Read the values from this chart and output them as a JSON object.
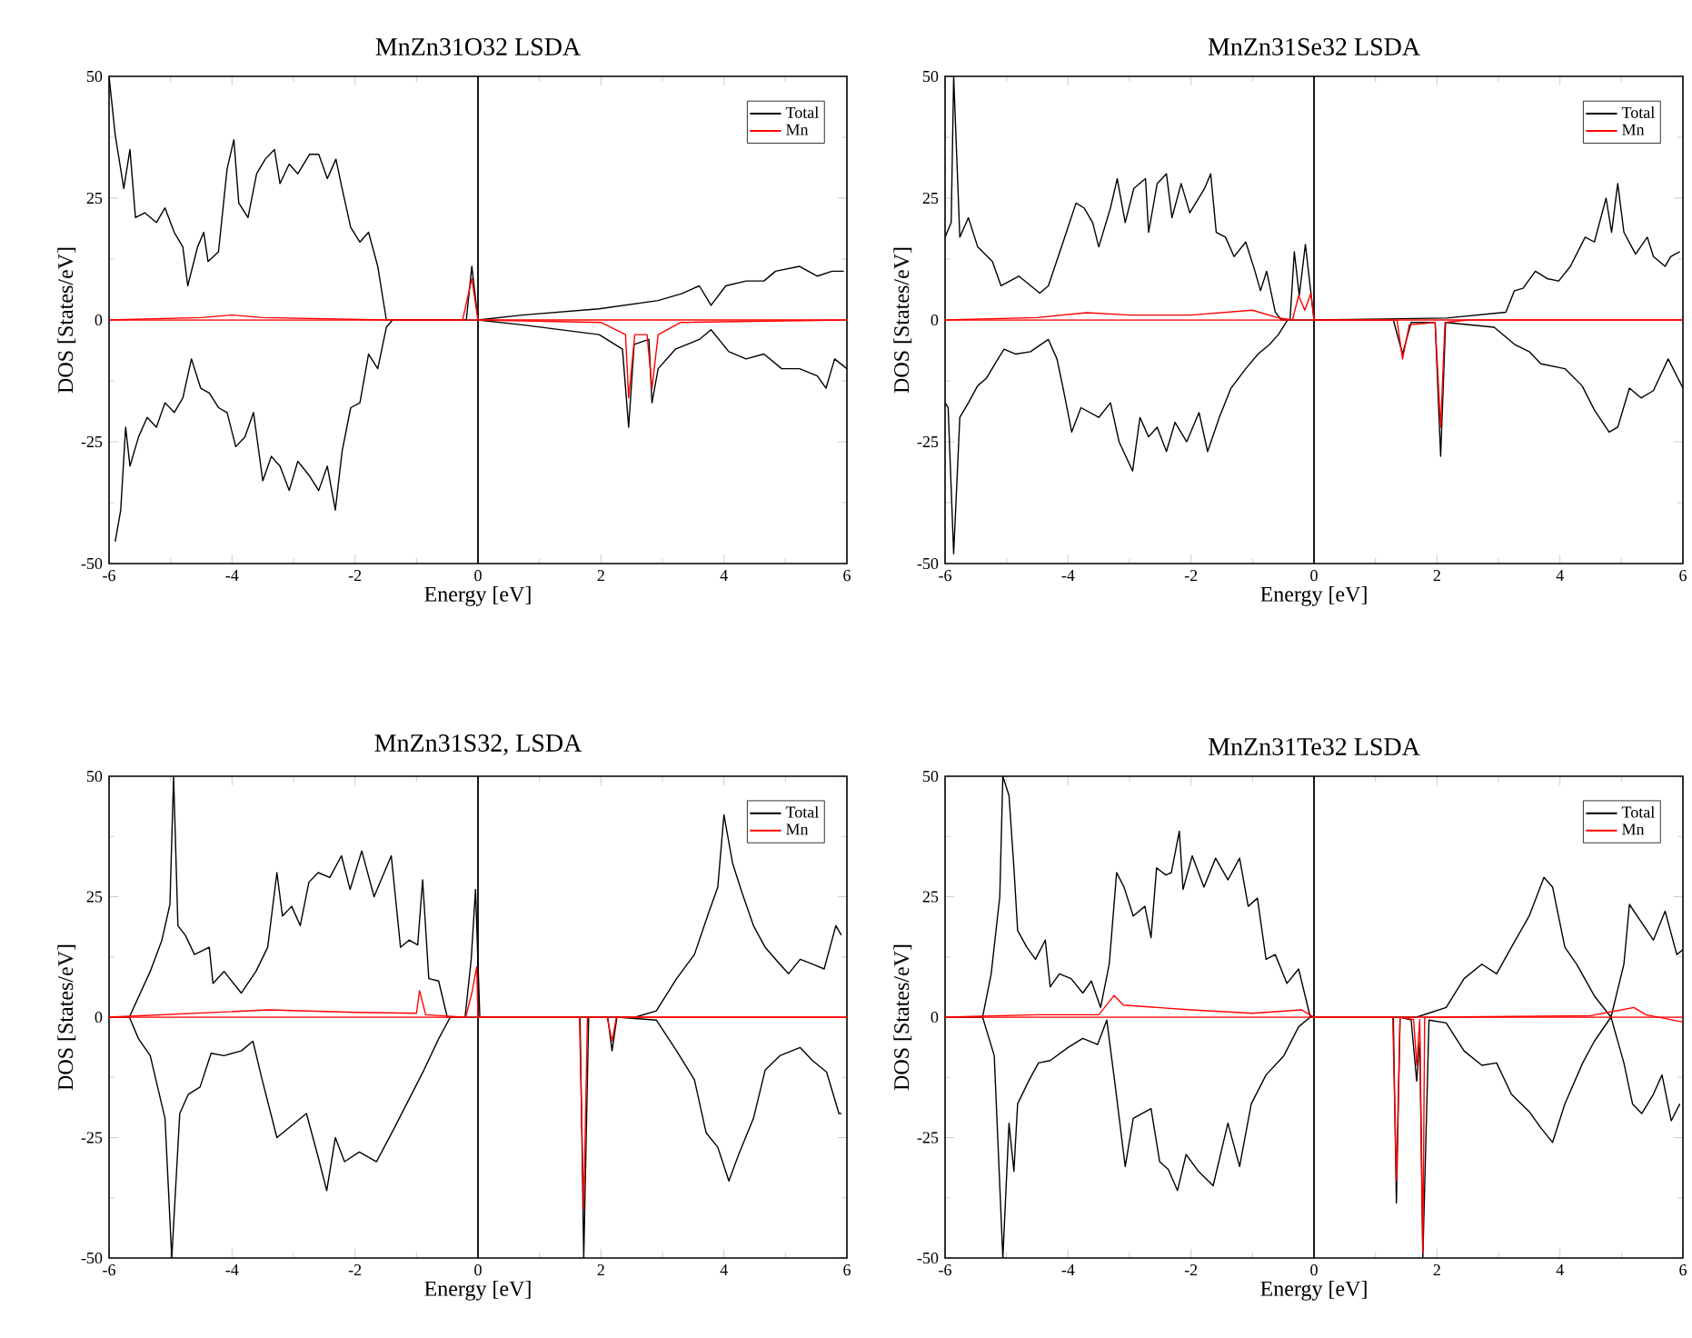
{
  "chart_data": [
    {
      "type": "line",
      "title": "MnZn31O32 LSDA",
      "xlabel": "Energy [eV]",
      "ylabel": "DOS [States/eV]",
      "xlim": [
        -6,
        6
      ],
      "ylim": [
        -50,
        50
      ],
      "xticks": [
        -6,
        -4,
        -2,
        0,
        2,
        4,
        6
      ],
      "yticks": [
        -50,
        -25,
        0,
        25,
        50
      ],
      "legend": "top right",
      "marker": "none",
      "line_style": "solid",
      "ref_lines": [
        {
          "axis": "x",
          "value": 0,
          "color": "#000000"
        }
      ],
      "series": [
        {
          "name": "Total",
          "color": "#000000",
          "x": [
            -6,
            -5.9,
            -5.76,
            -5.66,
            -5.57,
            -5.42,
            -5.23,
            -5.09,
            -4.94,
            -4.8,
            -4.72,
            -4.56,
            -4.46,
            -4.39,
            -4.22,
            -4.08,
            -3.97,
            -3.89,
            -3.74,
            -3.6,
            -3.46,
            -3.31,
            -3.22,
            -3.07,
            -2.93,
            -2.74,
            -2.59,
            -2.45,
            -2.31,
            -2.21,
            -2.07,
            -1.92,
            -1.78,
            -1.63,
            -1.49,
            -0.19,
            -0.1,
            0,
            0.72,
            1.97,
            2.93,
            3.31,
            3.6,
            3.79,
            4.03,
            4.36,
            4.65,
            4.84,
            5.23,
            5.52,
            5.76,
            5.95
          ],
          "values": [
            50,
            38,
            27,
            35,
            21,
            22,
            20,
            23,
            18,
            15,
            7,
            15,
            18,
            12,
            14,
            31,
            37,
            24,
            21,
            30,
            33,
            35,
            28,
            32,
            30,
            34,
            34,
            29,
            33,
            27,
            19,
            16,
            18,
            11,
            0,
            0,
            11,
            0,
            1,
            2.3,
            4,
            5.4,
            7,
            3,
            7,
            8,
            8,
            10,
            11,
            9,
            10,
            10
          ]
        },
        {
          "color": "#000000",
          "x": [
            -5.9,
            -5.81,
            -5.73,
            -5.66,
            -5.52,
            -5.38,
            -5.23,
            -5.09,
            -4.94,
            -4.8,
            -4.66,
            -4.51,
            -4.37,
            -4.22,
            -4.08,
            -3.94,
            -3.79,
            -3.65,
            -3.5,
            -3.36,
            -3.22,
            -3.07,
            -2.93,
            -2.74,
            -2.59,
            -2.45,
            -2.32,
            -2.21,
            -2.07,
            -1.92,
            -1.78,
            -1.63,
            -1.49,
            -1.39,
            0,
            0.72,
            1.97,
            2.35,
            2.45,
            2.54,
            2.78,
            2.83,
            2.93,
            3.21,
            3.6,
            3.79,
            4.08,
            4.36,
            4.65,
            4.94,
            5.23,
            5.52,
            5.66,
            5.8,
            6
          ],
          "values": [
            -45.5,
            -39,
            -22,
            -30,
            -24,
            -20,
            -22,
            -17,
            -19,
            -16,
            -8,
            -14,
            -15,
            -18,
            -19,
            -26,
            -24,
            -19,
            -33,
            -28,
            -30,
            -35,
            -29,
            -32,
            -35,
            -30,
            -39,
            -27,
            -18,
            -17,
            -7,
            -10,
            -1.5,
            0,
            0,
            -1,
            -3,
            -6,
            -22,
            -5,
            -4,
            -17,
            -10,
            -6,
            -4,
            -2,
            -6.5,
            -8,
            -7,
            -10,
            -10,
            -11.5,
            -14,
            -8,
            -10
          ]
        },
        {
          "name": "Mn",
          "color": "#ff0000",
          "x": [
            -6,
            -4.5,
            -4,
            -3.5,
            -1.5,
            -0.25,
            -0.1,
            0,
            6
          ],
          "values": [
            0,
            0.5,
            1,
            0.5,
            0,
            0,
            8.5,
            0,
            0
          ]
        },
        {
          "color": "#ff0000",
          "x": [
            -6,
            0,
            2,
            2.4,
            2.45,
            2.55,
            2.75,
            2.83,
            2.93,
            3.3,
            6
          ],
          "values": [
            0,
            0,
            -0.5,
            -3,
            -16,
            -3,
            -3,
            -14,
            -3,
            -0.5,
            0
          ]
        }
      ]
    },
    {
      "type": "line",
      "title": "MnZn31Se32 LSDA",
      "xlabel": "Energy [eV]",
      "ylabel": "DOS [States/eV]",
      "xlim": [
        -6,
        6
      ],
      "ylim": [
        -50,
        50
      ],
      "xticks": [
        -6,
        -4,
        -2,
        0,
        2,
        4,
        6
      ],
      "yticks": [
        -50,
        -25,
        0,
        25,
        50
      ],
      "legend": "top right",
      "marker": "none",
      "line_style": "solid",
      "ref_lines": [
        {
          "axis": "x",
          "value": 0,
          "color": "#000000"
        }
      ],
      "series": [
        {
          "name": "Total",
          "color": "#000000",
          "x": [
            -6,
            -5.9,
            -5.86,
            -5.76,
            -5.62,
            -5.47,
            -5.23,
            -5.09,
            -4.8,
            -4.46,
            -4.32,
            -4.08,
            -3.87,
            -3.74,
            -3.6,
            -3.5,
            -3.31,
            -3.2,
            -3.07,
            -2.93,
            -2.74,
            -2.69,
            -2.55,
            -2.4,
            -2.31,
            -2.16,
            -2.02,
            -1.78,
            -1.68,
            -1.59,
            -1.44,
            -1.3,
            -1.11,
            -0.96,
            -0.87,
            -0.77,
            -0.63,
            -0.53,
            -0.39,
            -0.32,
            -0.24,
            -0.14,
            0,
            2.16,
            3.12,
            3.26,
            3.4,
            3.6,
            3.79,
            3.98,
            4.17,
            4.41,
            4.56,
            4.75,
            4.84,
            4.94,
            5.04,
            5.23,
            5.42,
            5.52,
            5.71,
            5.8,
            5.95
          ],
          "values": [
            17,
            20,
            50,
            17,
            21,
            15,
            12,
            7,
            9,
            5.5,
            7,
            16,
            24,
            23,
            20,
            15,
            23,
            29,
            20,
            27,
            29,
            18,
            28,
            30,
            21,
            28,
            22,
            27,
            30,
            18,
            17,
            13,
            16,
            10,
            6,
            10,
            1.6,
            0,
            0,
            14,
            5,
            15.5,
            0,
            0.4,
            1.6,
            6,
            6.5,
            10,
            8.5,
            8,
            11,
            17,
            16,
            25,
            18,
            28,
            18,
            13.5,
            17,
            13,
            11,
            13,
            14
          ]
        },
        {
          "color": "#000000",
          "x": [
            -6,
            -5.95,
            -5.86,
            -5.76,
            -5.62,
            -5.47,
            -5.33,
            -5.14,
            -5.04,
            -4.85,
            -4.61,
            -4.32,
            -4.18,
            -4.08,
            -3.94,
            -3.79,
            -3.5,
            -3.31,
            -3.17,
            -2.95,
            -2.83,
            -2.69,
            -2.55,
            -2.4,
            -2.26,
            -2.07,
            -1.87,
            -1.73,
            -1.54,
            -1.35,
            -1.11,
            -0.91,
            -0.72,
            -0.58,
            -0.43,
            0,
            1.29,
            1.44,
            1.58,
            1.97,
            2.06,
            2.14,
            2.93,
            3.26,
            3.5,
            3.69,
            4.08,
            4.36,
            4.56,
            4.8,
            4.94,
            5.13,
            5.32,
            5.52,
            5.76,
            6
          ],
          "values": [
            -17,
            -18,
            -48,
            -20,
            -17,
            -13.5,
            -12,
            -8,
            -6,
            -7,
            -6.5,
            -4,
            -8,
            -14,
            -23,
            -18,
            -20,
            -17,
            -25,
            -31,
            -20,
            -24,
            -22,
            -27,
            -21,
            -25,
            -19,
            -27,
            -20,
            -14,
            -10,
            -7,
            -5,
            -3,
            0,
            0,
            0,
            -7,
            -0.5,
            -0.5,
            -28,
            -0.5,
            -1.5,
            -5,
            -6.5,
            -9,
            -10,
            -13.5,
            -18.5,
            -23,
            -22,
            -14,
            -16,
            -14.5,
            -8,
            -14
          ]
        },
        {
          "name": "Mn",
          "color": "#ff0000",
          "x": [
            -6,
            -4.5,
            -3.7,
            -3,
            -2,
            -1,
            -0.6,
            -0.35,
            -0.25,
            -0.15,
            -0.05,
            0,
            6
          ],
          "values": [
            0,
            0.5,
            1.5,
            1,
            1,
            2,
            0.5,
            0,
            5,
            2,
            5.5,
            0,
            0
          ]
        },
        {
          "color": "#ff0000",
          "x": [
            -6,
            0,
            1.35,
            1.44,
            1.55,
            1.97,
            2.06,
            2.13,
            2.5,
            6
          ],
          "values": [
            0,
            0,
            0,
            -8,
            -1,
            -0.5,
            -22,
            -0.5,
            0,
            0
          ]
        }
      ]
    },
    {
      "type": "line",
      "title": "MnZn31S32, LSDA",
      "xlabel": "Energy [eV]",
      "ylabel": "DOS [States/eV]",
      "xlim": [
        -6,
        6
      ],
      "ylim": [
        -50,
        50
      ],
      "xticks": [
        -6,
        -4,
        -2,
        0,
        2,
        4,
        6
      ],
      "yticks": [
        -50,
        -25,
        0,
        25,
        50
      ],
      "legend": "top right",
      "marker": "none",
      "line_style": "solid",
      "ref_lines": [
        {
          "axis": "x",
          "value": 0,
          "color": "#000000"
        }
      ],
      "series": [
        {
          "name": "Total",
          "color": "#000000",
          "x": [
            -6,
            -5.67,
            -5.33,
            -5.14,
            -5.01,
            -4.95,
            -4.88,
            -4.76,
            -4.61,
            -4.37,
            -4.31,
            -4.13,
            -3.85,
            -3.61,
            -3.42,
            -3.27,
            -3.18,
            -3.03,
            -2.89,
            -2.75,
            -2.6,
            -2.41,
            -2.22,
            -2.08,
            -1.89,
            -1.69,
            -1.41,
            -1.26,
            -1.12,
            -0.98,
            -0.9,
            -0.8,
            -0.64,
            -0.5,
            -0.21,
            -0.11,
            -0.04,
            0.03,
            2.56,
            2.9,
            3.23,
            3.52,
            3.76,
            3.9,
            4,
            4.14,
            4.29,
            4.48,
            4.67,
            4.91,
            5.05,
            5.24,
            5.44,
            5.63,
            5.82,
            5.91
          ],
          "values": [
            0,
            0,
            9.5,
            16,
            23.4,
            50,
            19,
            17,
            13,
            14.5,
            7,
            9.5,
            5,
            9.5,
            14.5,
            30,
            21,
            23,
            19,
            28,
            30,
            29,
            33.5,
            26.5,
            34.5,
            25,
            33.5,
            14.5,
            16,
            15,
            28.5,
            8,
            7.5,
            0,
            0,
            12,
            26.5,
            0,
            0,
            1.3,
            8,
            13,
            22,
            27,
            42,
            32,
            26,
            19,
            14.5,
            11,
            9,
            12,
            11,
            10,
            19,
            17
          ]
        },
        {
          "color": "#000000",
          "x": [
            -6,
            -5.67,
            -5.52,
            -5.33,
            -5.09,
            -4.98,
            -4.85,
            -4.71,
            -4.52,
            -4.34,
            -4.13,
            -3.85,
            -3.66,
            -3.51,
            -3.27,
            -3.08,
            -2.79,
            -2.6,
            -2.46,
            -2.32,
            -2.17,
            -1.93,
            -1.65,
            -1.36,
            -1.12,
            -0.88,
            -0.64,
            -0.45,
            0,
            1.66,
            1.72,
            1.8,
            2.11,
            2.18,
            2.26,
            2.9,
            3.23,
            3.52,
            3.71,
            3.9,
            4.08,
            4.24,
            4.48,
            4.67,
            4.91,
            5.24,
            5.44,
            5.67,
            5.87,
            5.91
          ],
          "values": [
            0,
            0,
            -4.5,
            -8,
            -21,
            -50,
            -20,
            -16,
            -14.5,
            -7.5,
            -8,
            -7,
            -5,
            -13,
            -25,
            -23,
            -20,
            -29,
            -36,
            -25,
            -30,
            -28,
            -30,
            -23,
            -17,
            -11,
            -4.5,
            0,
            0,
            0,
            -50,
            0,
            0,
            -7,
            0,
            -0.6,
            -7,
            -13,
            -24,
            -27,
            -34,
            -28.5,
            -21,
            -11,
            -8,
            -6.3,
            -9,
            -11.4,
            -20,
            -20
          ]
        },
        {
          "name": "Mn",
          "color": "#ff0000",
          "x": [
            -6,
            -3.4,
            -2,
            -1,
            -0.95,
            -0.85,
            -0.2,
            -0.1,
            -0.02,
            0,
            6
          ],
          "values": [
            0,
            1.5,
            1,
            0.8,
            5.5,
            0.5,
            0,
            5,
            10.5,
            0,
            0
          ]
        },
        {
          "color": "#ff0000",
          "x": [
            -6,
            0,
            1.65,
            1.72,
            1.78,
            2.1,
            2.18,
            2.25,
            6
          ],
          "values": [
            0,
            0,
            0,
            -40,
            0,
            0,
            -5,
            0,
            0
          ]
        }
      ]
    },
    {
      "type": "line",
      "title": "MnZn31Te32 LSDA",
      "xlabel": "Energy [eV]",
      "ylabel": "DOS [States/eV]",
      "xlim": [
        -6,
        6
      ],
      "ylim": [
        -50,
        50
      ],
      "xticks": [
        -6,
        -4,
        -2,
        0,
        2,
        4,
        6
      ],
      "yticks": [
        -50,
        -25,
        0,
        25,
        50
      ],
      "legend": "top right",
      "marker": "none",
      "line_style": "solid",
      "ref_lines": [
        {
          "axis": "x",
          "value": 0,
          "color": "#000000"
        }
      ],
      "series": [
        {
          "name": "Total",
          "color": "#000000",
          "x": [
            -6,
            -5.39,
            -5.25,
            -5.11,
            -5.06,
            -4.96,
            -4.88,
            -4.82,
            -4.67,
            -4.53,
            -4.37,
            -4.29,
            -4.14,
            -3.95,
            -3.76,
            -3.62,
            -3.47,
            -3.33,
            -3.21,
            -3.09,
            -2.94,
            -2.75,
            -2.65,
            -2.56,
            -2.41,
            -2.32,
            -2.19,
            -2.13,
            -1.98,
            -1.79,
            -1.6,
            -1.4,
            -1.21,
            -1.07,
            -0.92,
            -0.78,
            -0.63,
            -0.44,
            -0.25,
            -0.06,
            1.67,
            2.15,
            2.44,
            2.73,
            2.97,
            3.21,
            3.5,
            3.74,
            3.88,
            4.08,
            4.27,
            4.56,
            4.83,
            5.04,
            5.13,
            5.33,
            5.52,
            5.71,
            5.9,
            6
          ],
          "values": [
            0,
            0,
            9,
            25,
            50,
            46,
            31,
            18,
            14.5,
            12,
            16,
            6.3,
            9,
            8,
            5,
            7.5,
            2,
            11,
            30,
            27,
            21,
            23,
            16.5,
            31,
            29.5,
            30,
            38.6,
            26.5,
            33.5,
            27,
            33,
            28.5,
            33,
            23,
            24.7,
            12,
            13,
            7,
            10,
            0,
            0,
            2,
            8,
            11,
            9,
            14.5,
            21,
            29,
            27,
            14.5,
            11,
            4.4,
            0,
            11,
            23.4,
            19.6,
            16,
            22,
            13,
            14
          ]
        },
        {
          "color": "#000000",
          "x": [
            -6,
            -5.39,
            -5.2,
            -5.06,
            -4.96,
            -4.88,
            -4.82,
            -4.63,
            -4.48,
            -4.29,
            -4,
            -3.76,
            -3.52,
            -3.37,
            -3.23,
            -3.07,
            -2.94,
            -2.65,
            -2.51,
            -2.37,
            -2.22,
            -2.08,
            -1.88,
            -1.64,
            -1.4,
            -1.21,
            -1.02,
            -0.78,
            -0.49,
            -0.25,
            -0.06,
            1.29,
            1.34,
            1.4,
            1.58,
            1.67,
            1.72,
            1.77,
            1.87,
            2.15,
            2.44,
            2.73,
            2.97,
            3.21,
            3.5,
            3.69,
            3.88,
            4.08,
            4.37,
            4.56,
            4.83,
            5.04,
            5.18,
            5.33,
            5.52,
            5.66,
            5.81,
            5.95
          ],
          "values": [
            0,
            0,
            -8,
            -50,
            -22,
            -32,
            -18,
            -13,
            -9.5,
            -9,
            -6.3,
            -4.4,
            -5.7,
            -0.6,
            -14.5,
            -31,
            -21,
            -19,
            -30,
            -31.6,
            -36,
            -28.5,
            -32,
            -35,
            -22,
            -31,
            -18,
            -12,
            -8,
            -2,
            0,
            0,
            -38.6,
            0,
            -0.6,
            -13.3,
            -5,
            -50,
            -0.6,
            -1.2,
            -7,
            -10,
            -9.5,
            -16,
            -19.6,
            -23,
            -26,
            -18,
            -9.5,
            -5,
            0,
            -9.5,
            -18,
            -20,
            -16,
            -12,
            -21.5,
            -18
          ]
        },
        {
          "name": "Mn",
          "color": "#ff0000",
          "x": [
            -6,
            -4.5,
            -3.5,
            -3.25,
            -3.1,
            -2,
            -1,
            -0.2,
            0,
            2,
            4.5,
            5.2,
            5.4,
            6
          ],
          "values": [
            0,
            0.5,
            0.5,
            4.5,
            2.5,
            1.5,
            0.8,
            1.5,
            0,
            0,
            0.3,
            2,
            0.5,
            -1
          ]
        },
        {
          "color": "#ff0000",
          "x": [
            -6,
            0,
            1.28,
            1.34,
            1.4,
            1.62,
            1.67,
            1.72,
            1.77,
            1.8,
            6
          ],
          "values": [
            0,
            0,
            0,
            -34,
            0,
            -0.5,
            -10,
            -0.5,
            -49,
            0,
            0
          ]
        }
      ]
    }
  ]
}
